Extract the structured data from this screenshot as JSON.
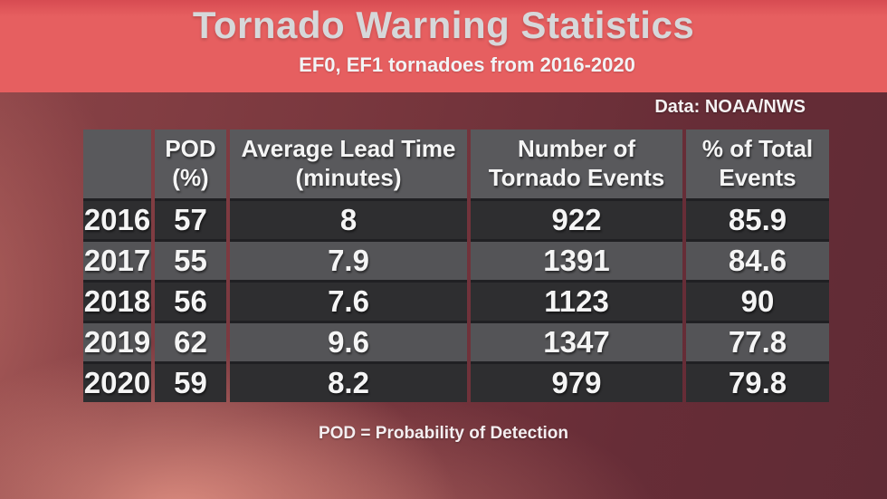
{
  "colors": {
    "banner": "#e65f60",
    "banner_top_edge": "#d64b52",
    "background_maroon": "#6e3039",
    "background_pink_glow": "#ec9a8a",
    "table_header_bg": "#59595c",
    "row_dark_bg": "#2e2e30",
    "row_light_bg": "#545457",
    "row_divider": "#202023",
    "title_text": "#d6d8da",
    "body_text": "#f5f5f5"
  },
  "chart_data": {
    "type": "table",
    "title": "Tornado Warning Statistics",
    "subtitle": "EF0, EF1 tornadoes from 2016-2020",
    "source": "Data: NOAA/NWS",
    "footnote": "POD = Probability of Detection",
    "columns": [
      "",
      "POD\n(%)",
      "Average Lead Time\n(minutes)",
      "Number of\nTornado Events",
      "% of Total\nEvents"
    ],
    "rows": [
      [
        "2016",
        "57",
        "8",
        "922",
        "85.9"
      ],
      [
        "2017",
        "55",
        "7.9",
        "1391",
        "84.6"
      ],
      [
        "2018",
        "56",
        "7.6",
        "1123",
        "90"
      ],
      [
        "2019",
        "62",
        "9.6",
        "1347",
        "77.8"
      ],
      [
        "2020",
        "59",
        "8.2",
        "979",
        "79.8"
      ]
    ]
  }
}
